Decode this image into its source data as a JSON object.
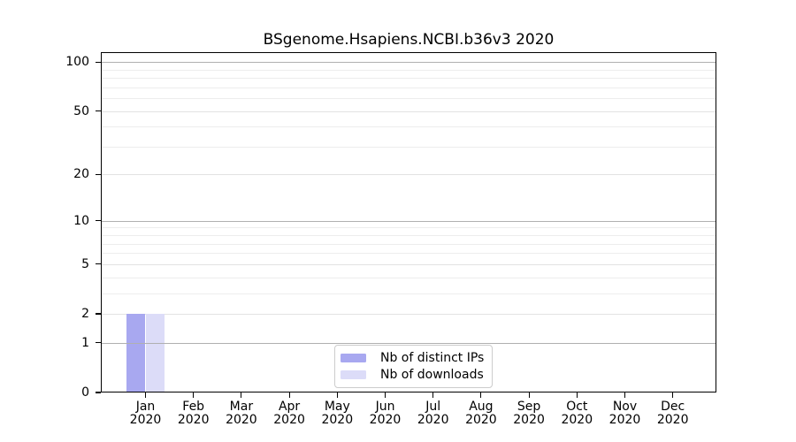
{
  "chart_data": {
    "type": "bar",
    "title": "BSgenome.Hsapiens.NCBI.b36v3 2020",
    "categories": [
      "Jan",
      "Feb",
      "Mar",
      "Apr",
      "May",
      "Jun",
      "Jul",
      "Aug",
      "Sep",
      "Oct",
      "Nov",
      "Dec"
    ],
    "category_subline": "2020",
    "series": [
      {
        "name": "Nb of distinct IPs",
        "color": "#a8a8f0",
        "values": [
          2,
          0,
          0,
          0,
          0,
          0,
          0,
          0,
          0,
          0,
          0,
          0
        ]
      },
      {
        "name": "Nb of downloads",
        "color": "#dcdcf8",
        "values": [
          2,
          0,
          0,
          0,
          0,
          0,
          0,
          0,
          0,
          0,
          0,
          0
        ]
      }
    ],
    "y_axis": {
      "scale": "log1p",
      "tick_values": [
        0,
        1,
        2,
        5,
        10,
        20,
        50,
        100
      ],
      "major_gridlines": [
        1,
        10,
        100
      ],
      "mid_gridlines": [
        2,
        5,
        20,
        50
      ],
      "minor_gridlines": [
        3,
        4,
        6,
        7,
        8,
        9,
        30,
        40,
        60,
        70,
        80,
        90
      ],
      "range": [
        0,
        115
      ]
    },
    "xlabel": "",
    "ylabel": "",
    "grid": "horizontal",
    "legend_position": "lower center"
  },
  "colors": {
    "background": "#ffffff",
    "spine": "#000000",
    "major_grid": "#b0b0b0",
    "mid_grid": "#e2e2e2",
    "minor_grid": "#ededed",
    "legend_border": "#cccccc",
    "text": "#000000"
  }
}
